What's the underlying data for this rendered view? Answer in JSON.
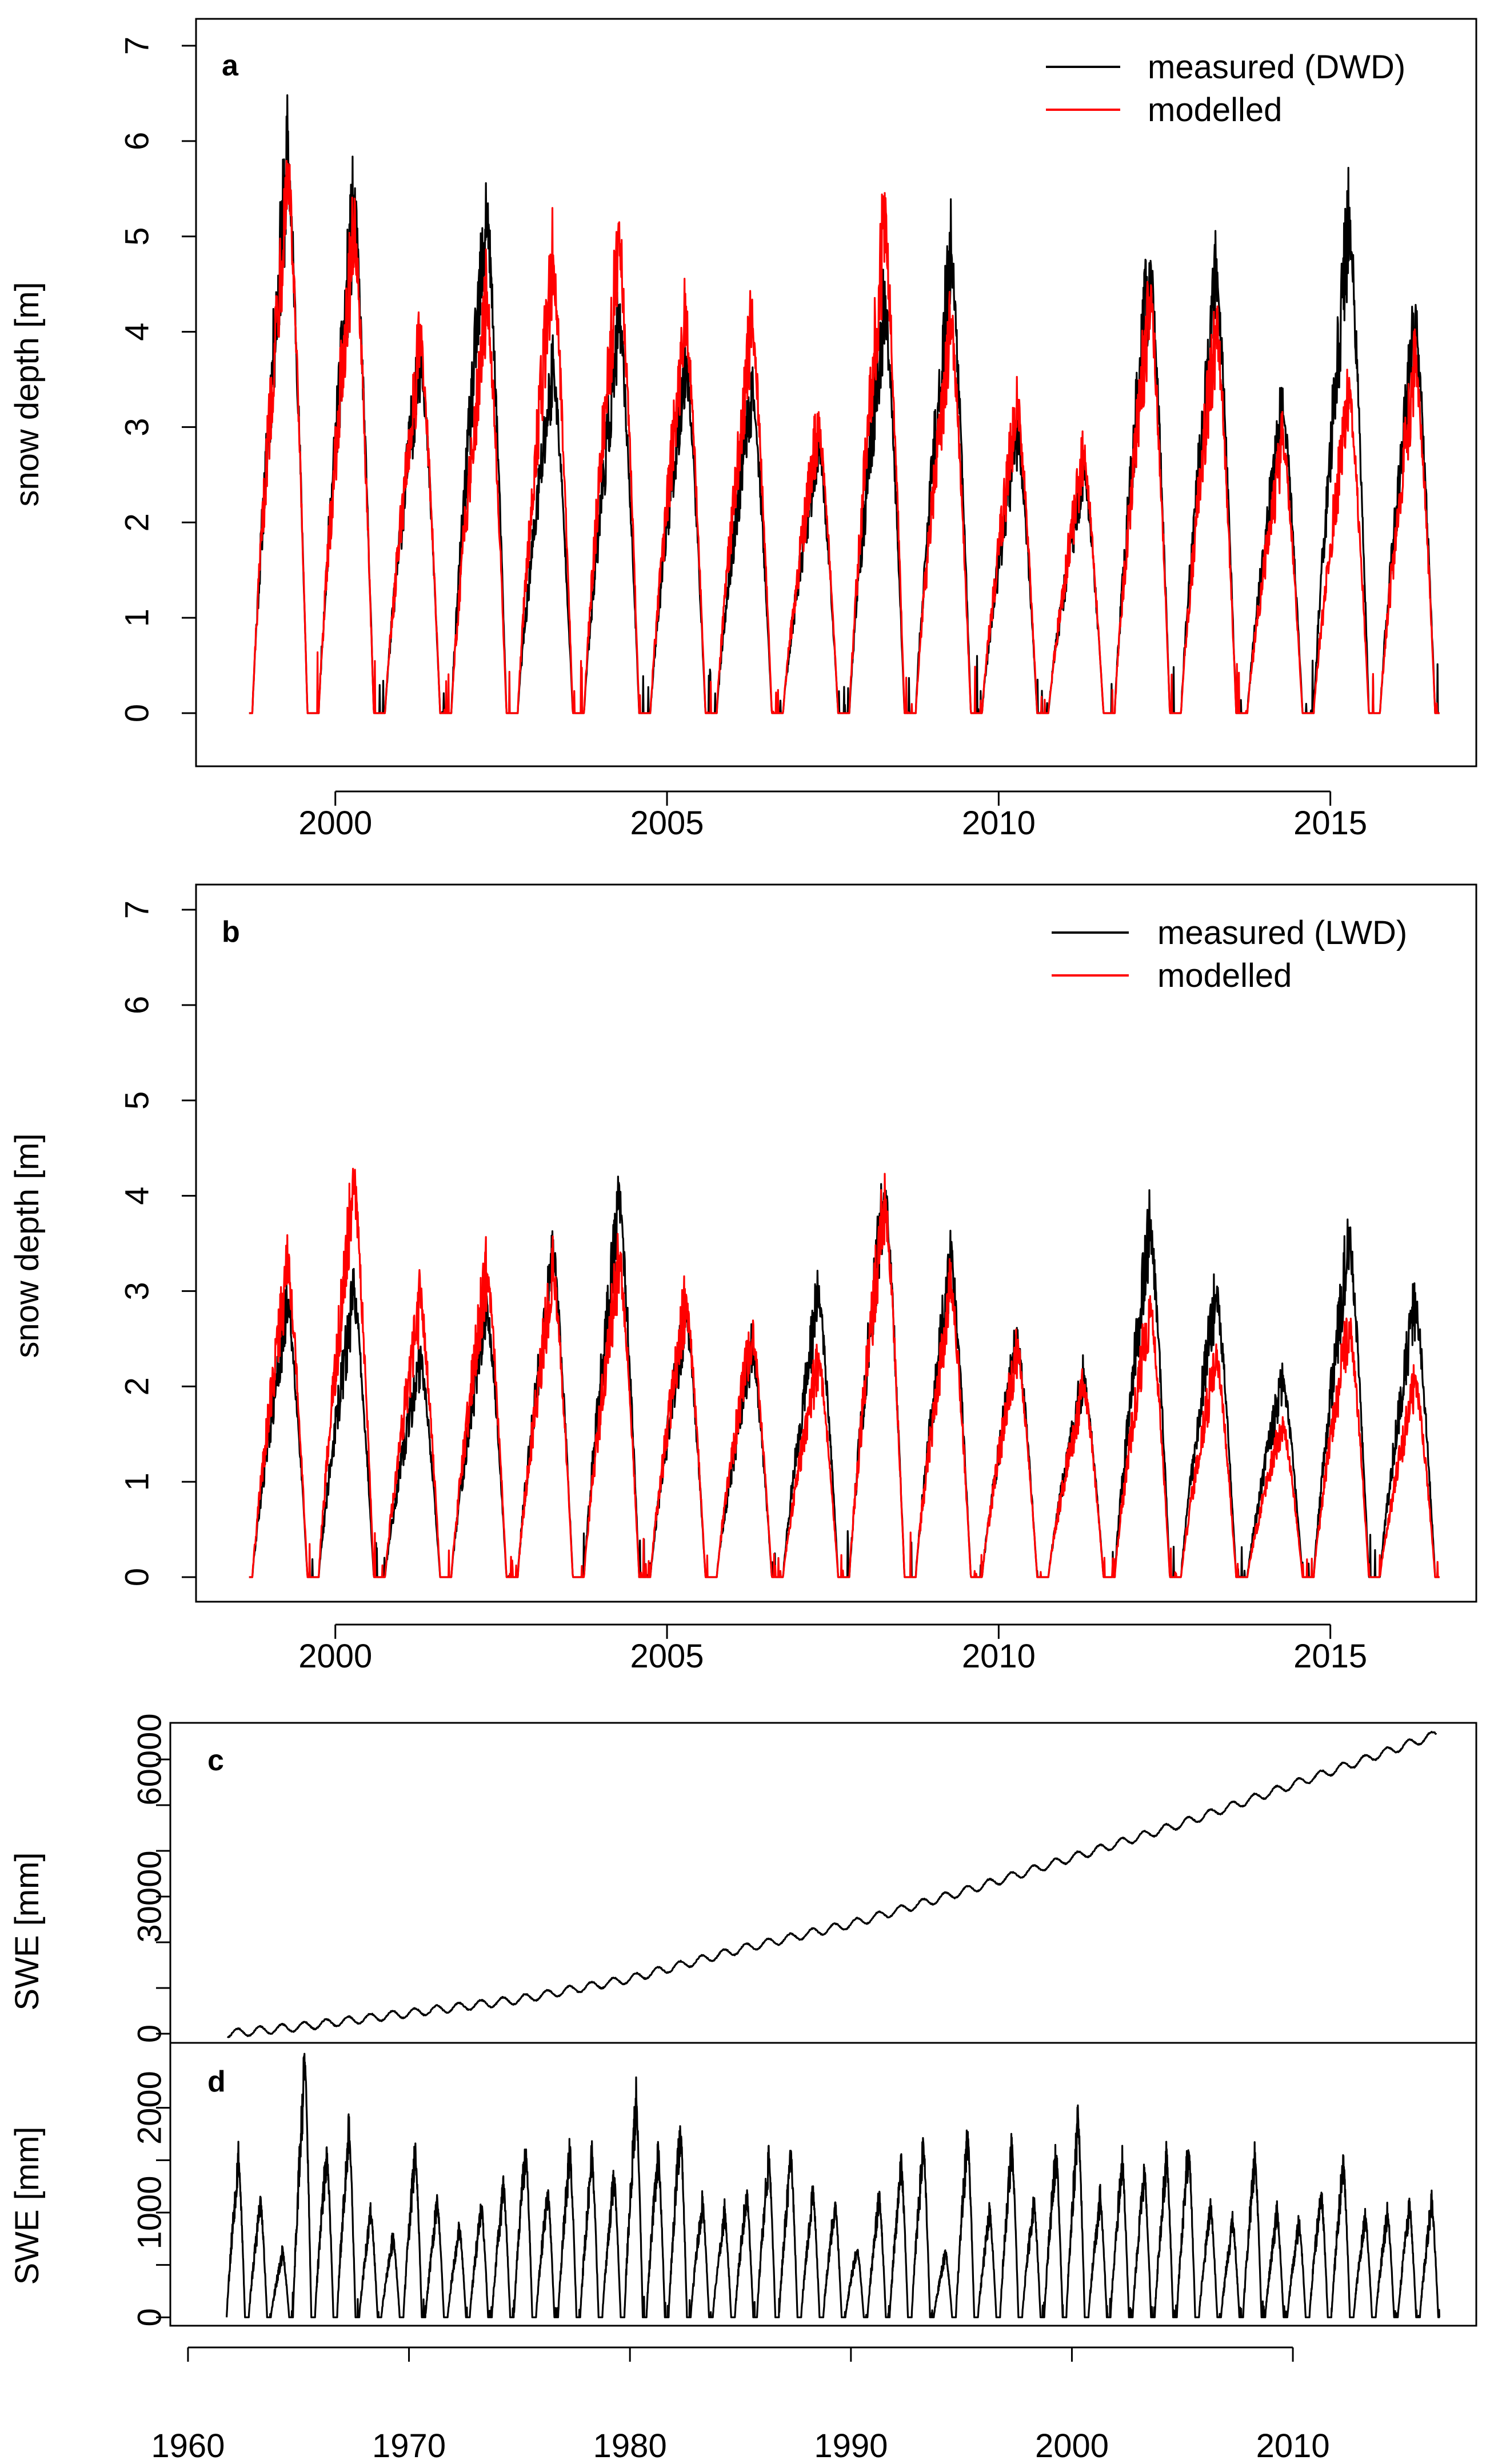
{
  "colors": {
    "measured": "#000000",
    "modelled": "#ff0000",
    "swe": "#000000"
  },
  "chart_data": [
    {
      "id": "a",
      "type": "line",
      "panel_label": "a",
      "ylabel": "snow depth [m]",
      "xlim": [
        1997.9,
        2017.2
      ],
      "ylim": [
        0,
        7
      ],
      "yticks": [
        0,
        1,
        2,
        3,
        4,
        5,
        6,
        7
      ],
      "xticks": [
        2000,
        2005,
        2010,
        2015
      ],
      "legend": [
        "measured (DWD)",
        "modelled"
      ],
      "legend_position": "top-right",
      "series": [
        {
          "name": "measured (DWD)",
          "color_key": "measured",
          "season_start": 1998.7,
          "season_length": 0.9,
          "peak_years": [
            1999,
            2000,
            2001,
            2002,
            2003,
            2004,
            2005,
            2006,
            2007,
            2008,
            2009,
            2010,
            2011,
            2012,
            2013,
            2014,
            2015,
            2016
          ],
          "peak_values": [
            6.1,
            5.6,
            4.0,
            5.5,
            3.8,
            4.3,
            3.9,
            3.6,
            3.0,
            4.5,
            5.05,
            3.1,
            2.7,
            5.0,
            4.8,
            3.4,
            5.45,
            4.3
          ]
        },
        {
          "name": "modelled",
          "color_key": "modelled",
          "season_start": 1998.7,
          "season_length": 0.9,
          "peak_years": [
            1999,
            2000,
            2001,
            2002,
            2003,
            2004,
            2005,
            2006,
            2007,
            2008,
            2009,
            2010,
            2011,
            2012,
            2013,
            2014,
            2015,
            2016
          ],
          "peak_values": [
            6.0,
            5.4,
            4.1,
            4.6,
            5.05,
            5.2,
            4.35,
            4.3,
            3.2,
            5.4,
            4.3,
            3.4,
            2.85,
            4.6,
            4.3,
            3.0,
            3.5,
            3.9
          ]
        }
      ]
    },
    {
      "id": "b",
      "type": "line",
      "panel_label": "b",
      "ylabel": "snow depth [m]",
      "xlim": [
        1997.9,
        2017.2
      ],
      "ylim": [
        0,
        7
      ],
      "yticks": [
        0,
        1,
        2,
        3,
        4,
        5,
        6,
        7
      ],
      "xticks": [
        2000,
        2005,
        2010,
        2015
      ],
      "legend": [
        "measured (LWD)",
        "modelled"
      ],
      "legend_position": "top-right",
      "series": [
        {
          "name": "measured (LWD)",
          "color_key": "measured",
          "season_start": 1998.7,
          "season_length": 0.9,
          "peak_years": [
            1999,
            2000,
            2001,
            2002,
            2003,
            2004,
            2005,
            2006,
            2007,
            2008,
            2009,
            2010,
            2011,
            2012,
            2013,
            2014,
            2015,
            2016
          ],
          "peak_values": [
            3.0,
            3.1,
            2.4,
            3.0,
            3.55,
            4.1,
            2.9,
            2.5,
            3.1,
            4.25,
            3.5,
            2.6,
            2.2,
            3.85,
            3.15,
            2.2,
            3.75,
            3.05
          ]
        },
        {
          "name": "modelled",
          "color_key": "modelled",
          "season_start": 1998.7,
          "season_length": 0.9,
          "peak_years": [
            1999,
            2000,
            2001,
            2002,
            2003,
            2004,
            2005,
            2006,
            2007,
            2008,
            2009,
            2010,
            2011,
            2012,
            2013,
            2014,
            2015,
            2016
          ],
          "peak_values": [
            3.45,
            4.3,
            3.05,
            3.4,
            3.35,
            3.5,
            3.05,
            2.7,
            2.4,
            4.2,
            3.2,
            2.5,
            2.1,
            3.0,
            2.4,
            1.7,
            2.8,
            2.15
          ]
        }
      ]
    },
    {
      "id": "c",
      "type": "line",
      "panel_label": "c",
      "ylabel": "SWE [mm]",
      "xlim": [
        1959.2,
        2018.3
      ],
      "ylim": [
        -2000,
        68000
      ],
      "yticks": [
        0,
        10000,
        20000,
        30000,
        40000,
        50000,
        60000
      ],
      "ytick_labels": [
        "0",
        "",
        "",
        "30000",
        "",
        "",
        "60000"
      ],
      "series": [
        {
          "name": "SWE cumulative",
          "color_key": "swe",
          "start_year": 1961.8,
          "end_year": 2016.5,
          "anchor_years": [
            1961.8,
            1965,
            1970,
            1975,
            1980,
            1985,
            1990,
            1995,
            2000,
            2005,
            2010,
            2016.5
          ],
          "anchor_values": [
            0,
            1500,
            4500,
            7500,
            12000,
            18500,
            24000,
            31000,
            38500,
            46000,
            54500,
            65500
          ]
        }
      ]
    },
    {
      "id": "d",
      "type": "line",
      "panel_label": "d",
      "ylabel": "SWE [mm]",
      "xlim": [
        1959.2,
        2018.3
      ],
      "ylim": [
        -80,
        2620
      ],
      "yticks": [
        0,
        500,
        1000,
        1500,
        2000
      ],
      "ytick_labels": [
        "0",
        "",
        "1000",
        "",
        "2000"
      ],
      "xticks": [
        1960,
        1970,
        1980,
        1990,
        2000,
        2010
      ],
      "series": [
        {
          "name": "SWE seasonal",
          "color_key": "swe",
          "season_start": 1961.75,
          "season_length": 0.72,
          "peak_years": [
            1962,
            1963,
            1964,
            1965,
            1966,
            1967,
            1968,
            1969,
            1970,
            1971,
            1972,
            1973,
            1974,
            1975,
            1976,
            1977,
            1978,
            1979,
            1980,
            1981,
            1982,
            1983,
            1984,
            1985,
            1986,
            1987,
            1988,
            1989,
            1990,
            1991,
            1992,
            1993,
            1994,
            1995,
            1996,
            1997,
            1998,
            1999,
            2000,
            2001,
            2002,
            2003,
            2004,
            2005,
            2006,
            2007,
            2008,
            2009,
            2010,
            2011,
            2012,
            2013,
            2014,
            2015,
            2016
          ],
          "peak_values": [
            1600,
            1150,
            650,
            2550,
            1650,
            1900,
            1050,
            800,
            1650,
            1150,
            900,
            1100,
            1300,
            1700,
            1250,
            1650,
            1600,
            1400,
            2150,
            1650,
            1900,
            1150,
            1050,
            1250,
            1600,
            1600,
            1250,
            1150,
            700,
            1200,
            1500,
            1700,
            650,
            1800,
            1050,
            1700,
            1150,
            1650,
            1950,
            1200,
            1550,
            1450,
            1600,
            1700,
            1100,
            950,
            1600,
            1050,
            950,
            1250,
            1550,
            1000,
            1050,
            1100,
            1150
          ]
        }
      ]
    }
  ]
}
